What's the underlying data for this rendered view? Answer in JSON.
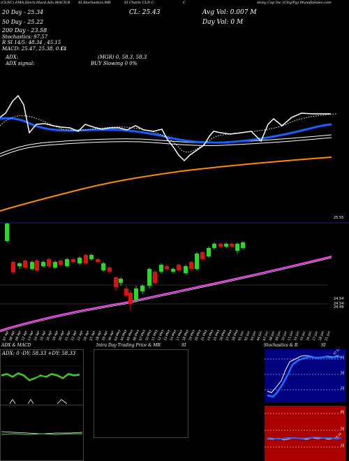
{
  "header": {
    "line1_left": "(CLNC) EMA,Stoch,Macd,Adx,MACD,B",
    "line1_mid": "SI,Stochastics,MR",
    "line1_mid2": "SI Charts CLN C",
    "line1_mid3": "C",
    "line1_right": "olony Cap Inc (Clny/Pg) MunafaSales.com",
    "ema20": "20  Day - 25.34",
    "ema50": "50  Day - 25.22",
    "ema200": "200  Day - 23.58",
    "stoch": "Stochastics: 97.57",
    "rsi": "R      SI 14/5: 48.34 , 45.15",
    "macd": "MACD: 25.47, 25.38, 0.14",
    "macd_c": "C",
    "cl": "CL: 25.43",
    "avg_vol": "Avg Vol: 0.007  M",
    "day_vol": "Day Vol: 0    M",
    "adx": "ADX:",
    "adx_vals": "(MGR) 0, 58.3, 58.3",
    "adx_signal": "ADX  signal:",
    "buy_signal": "BUY Slowing 0 0%"
  },
  "price_axis": {
    "top_label": "25.55",
    "labels": [
      "24.54",
      "24.54",
      "24.49"
    ]
  },
  "date_labels": [
    "07 Apr",
    "08 Apr",
    "09 Apr",
    "12 Apr",
    "13 Apr",
    "14 Apr",
    "15 Apr",
    "16 Apr",
    "19 Apr",
    "20 Apr",
    "21 Apr",
    "22 Apr",
    "23 Apr",
    "26 Apr",
    "27 Apr",
    "28 Apr",
    "29 Apr",
    "30 Apr",
    "03 May",
    "04 May",
    "05 May",
    "06 May",
    "07 May",
    "10 May",
    "11 May",
    "12 May",
    "13 May",
    "14 May",
    "17 May",
    "18 May",
    "19 May",
    "20 May",
    "21 May",
    "24 May",
    "25 May",
    "26 May",
    "27 May",
    "28 May",
    "01 Jun",
    "02 Jun",
    "03 Jun",
    "04 Jun",
    "07 Jun",
    "08 Jun",
    "09 Jun",
    "10 Jun",
    "11 Jun",
    "14 Jun",
    "15 Jun",
    "16 Jun",
    "17 Jun",
    "18 Jun",
    "21 Jun"
  ],
  "panels": {
    "left_title": "ADX  & MACD",
    "left_adx_label": "ADX: 0  -DY: 58.33 +DY: 58.33",
    "mid_title": "Intra  Day Trading Price  & MR",
    "mid_title2": "SI",
    "right_title": "Stochastics & R",
    "right_title2": "SI",
    "stoch_top_label": "97.57",
    "stoch_levels": [
      "80",
      "50",
      "20"
    ],
    "rsi_levels": [
      "80",
      "50",
      "20"
    ],
    "rsi_last": "48.34"
  },
  "colors": {
    "ema_white": "#ffffff",
    "ema_blue": "#1560ff",
    "ema_orange": "#ff8c00",
    "candle_up": "#22dd22",
    "candle_down": "#dd1111",
    "trend_magenta": "#ff40ff",
    "stoch_bg": "#000080",
    "rsi_bg": "#aa0000",
    "adx_green": "#22cc22",
    "adx_orange": "#d9a000"
  },
  "chart_data": {
    "type": "line",
    "title": "SI Charts CLN C",
    "series": [
      {
        "name": "20  Day",
        "values": [
          25.47,
          25.46,
          25.41,
          25.36,
          25.34,
          25.33,
          25.32,
          25.31,
          25.31,
          25.3,
          25.28,
          25.27,
          25.26,
          25.26,
          25.25,
          25.24,
          25.23,
          25.2,
          25.21,
          25.2,
          25.2,
          25.19,
          25.18,
          25.17,
          25.16,
          25.15,
          25.15,
          25.16,
          25.17,
          25.19,
          25.21,
          25.22,
          25.22,
          25.24,
          25.25,
          25.27,
          25.3,
          25.34
        ]
      },
      {
        "name": "50  Day",
        "values": [
          25.12,
          25.12,
          25.12,
          25.13,
          25.14,
          25.15,
          25.16,
          25.17,
          25.18,
          25.19,
          25.18,
          25.17,
          25.16,
          25.14,
          25.13,
          25.12,
          25.12,
          25.11,
          25.1,
          25.1,
          25.11,
          25.13,
          25.15,
          25.18,
          25.2,
          25.22
        ]
      },
      {
        "name": "200  Day",
        "values": [
          22.8,
          22.9,
          23.0,
          23.06,
          23.11,
          23.16,
          23.2,
          23.24,
          23.28,
          23.31,
          23.34,
          23.37,
          23.4,
          23.43,
          23.46,
          23.5,
          23.53,
          23.55,
          23.58
        ]
      }
    ],
    "candles_close": [
      25.55,
      25.2,
      25.25,
      25.22,
      25.22,
      25.2,
      25.18,
      25.21,
      25.24,
      25.2,
      25.19,
      25.22,
      25.21,
      25.18,
      24.75,
      24.8,
      24.55,
      24.6,
      24.75,
      24.95,
      24.85,
      24.98,
      25.05,
      25.1,
      25.2,
      25.3,
      25.4,
      25.43,
      25.45,
      25.43
    ],
    "stochastics": 97.57,
    "rsi": [
      48.34,
      45.15
    ],
    "macd": [
      25.47,
      25.38,
      0.14
    ],
    "adx": [
      0,
      58.33,
      58.33
    ]
  }
}
